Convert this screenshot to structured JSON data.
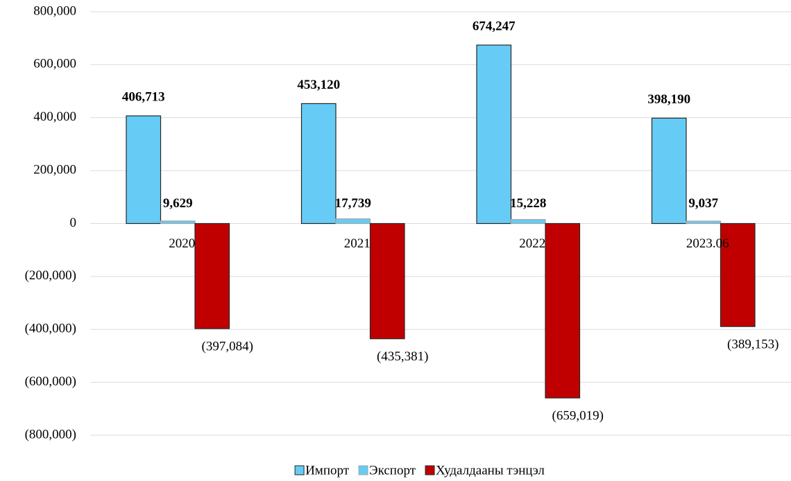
{
  "chart_data": {
    "type": "bar",
    "categories": [
      "2020",
      "2021",
      "2022",
      "2023.06"
    ],
    "series": [
      {
        "name": "Импорт",
        "color": "#66ccf5",
        "values": [
          406713,
          453120,
          674247,
          398190
        ],
        "value_labels": [
          "406,713",
          "453,120",
          "674,247",
          "398,190"
        ]
      },
      {
        "name": "Экспорт",
        "color": "#66ccf5",
        "values": [
          9629,
          17739,
          15228,
          9037
        ],
        "value_labels": [
          "9,629",
          "17,739",
          "15,228",
          "9,037"
        ]
      },
      {
        "name": "Худалдааны тэнцэл",
        "color": "#c00000",
        "values": [
          -397084,
          -435381,
          -659019,
          -389153
        ],
        "value_labels": [
          "(397,084)",
          "(435,381)",
          "(659,019)",
          "(389,153)"
        ]
      }
    ],
    "ylim": [
      -800000,
      800000
    ],
    "yticks": [
      {
        "value": -800000,
        "label": "(800,000)"
      },
      {
        "value": -600000,
        "label": "(600,000)"
      },
      {
        "value": -400000,
        "label": "(400,000)"
      },
      {
        "value": -200000,
        "label": "(200,000)"
      },
      0,
      {
        "value": 200000,
        "label": "200,000"
      },
      {
        "value": 400000,
        "label": "400,000"
      },
      {
        "value": 600000,
        "label": "600,000"
      },
      {
        "value": 800000,
        "label": "800,000"
      }
    ],
    "grid": true,
    "legend": "bottom"
  }
}
